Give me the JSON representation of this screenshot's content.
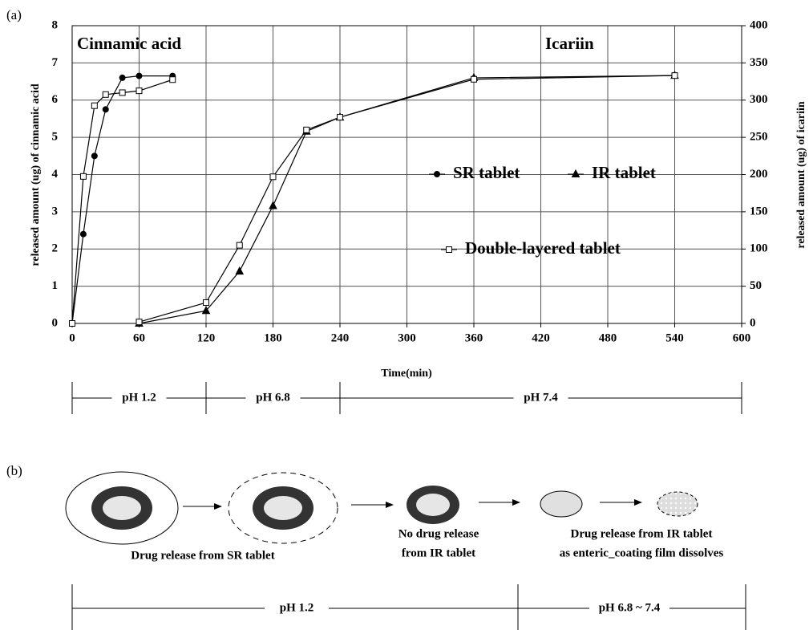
{
  "chart_data": {
    "type": "line",
    "panel_label": "(a)",
    "x_label": "Time(min)",
    "y_label": "released amount (ug) of cinnamic acid",
    "y2_label": "released amount (ug) of icariin",
    "annotations": [
      "Cinnamic acid",
      "Icariin"
    ],
    "xlim": [
      0,
      600
    ],
    "xticks": [
      0,
      60,
      120,
      180,
      240,
      300,
      360,
      420,
      480,
      540,
      600
    ],
    "ylim": [
      0,
      8
    ],
    "yticks": [
      0,
      1,
      2,
      3,
      4,
      5,
      6,
      7,
      8
    ],
    "y2lim": [
      0,
      400
    ],
    "y2ticks": [
      0,
      50,
      100,
      150,
      200,
      250,
      300,
      350,
      400
    ],
    "grid": true,
    "series": [
      {
        "name": "SR tablet",
        "color": "#000000",
        "marker": "circle",
        "x": [
          0,
          10,
          20,
          30,
          45,
          60,
          90
        ],
        "values": [
          0,
          2.4,
          4.5,
          5.75,
          6.6,
          6.65,
          6.65
        ]
      },
      {
        "name": "Double-layered tablet",
        "color": "#000000",
        "marker": "square",
        "x": [
          0,
          10,
          20,
          30,
          45,
          60,
          90
        ],
        "values": [
          0,
          3.95,
          5.85,
          6.15,
          6.2,
          6.25,
          6.55
        ]
      },
      {
        "name": "IR tablet",
        "color": "#000000",
        "marker": "triangle",
        "axis": "y2",
        "x": [
          60,
          120,
          150,
          180,
          210,
          240,
          360,
          540
        ],
        "values": [
          0,
          17,
          70,
          158,
          258,
          277,
          330,
          333
        ]
      },
      {
        "name": "Double-layered tablet",
        "color": "#000000",
        "marker": "square",
        "axis": "y2",
        "x": [
          60,
          120,
          150,
          180,
          210,
          240,
          360,
          540
        ],
        "values": [
          2,
          28,
          105,
          197,
          260,
          277,
          328,
          333
        ]
      }
    ],
    "ph_ranges": [
      {
        "label": "pH 1.2",
        "from": 0,
        "to": 120
      },
      {
        "label": "pH 6.8",
        "from": 120,
        "to": 240
      },
      {
        "label": "pH 7.4",
        "from": 240,
        "to": 600
      }
    ]
  },
  "diagram": {
    "panel_label": "(b)",
    "captions": [
      [
        "Drug release from  SR tablet"
      ],
      [
        "No drug release",
        "from IR tablet"
      ],
      [
        "Drug release from  IR tablet",
        "as enteric_coating film dissolves"
      ]
    ],
    "phases": [
      "pH 1.2",
      "pH 6.8 ~ 7.4"
    ]
  }
}
